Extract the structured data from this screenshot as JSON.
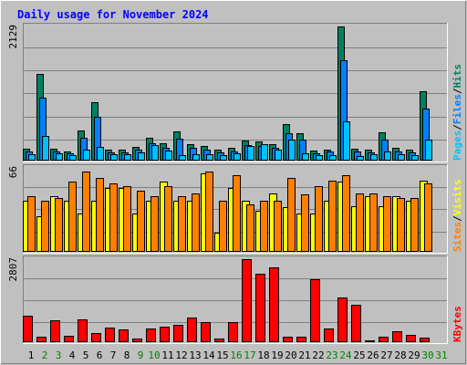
{
  "title": "Daily usage for November 2024",
  "colors": {
    "background": "#c0c0c0",
    "frame_light": "#ffffff",
    "frame_dark": "#808080",
    "title": "#0000ff",
    "pages": "#00c0ff",
    "files": "#0080ff",
    "hits": "#008060",
    "sites": "#ff8000",
    "visits": "#ffff00",
    "kbytes": "#ff0000",
    "weekday_label": "#000000",
    "weekend_label": "#008000"
  },
  "chart_data": [
    {
      "type": "bar",
      "panel": "hits-files-pages",
      "axis_max_label": "2129",
      "ylim": [
        0,
        2129
      ],
      "legend": [
        {
          "name": "Pages",
          "color": "#00c0ff"
        },
        {
          "name": "/",
          "color": "#000000"
        },
        {
          "name": "Files",
          "color": "#0080ff"
        },
        {
          "name": "/",
          "color": "#000000"
        },
        {
          "name": "Hits",
          "color": "#008060"
        }
      ],
      "categories": [
        "1",
        "2",
        "3",
        "4",
        "5",
        "6",
        "7",
        "8",
        "9",
        "10",
        "11",
        "12",
        "13",
        "14",
        "15",
        "16",
        "17",
        "18",
        "19",
        "20",
        "21",
        "22",
        "23",
        "24",
        "25",
        "26",
        "27",
        "28",
        "29",
        "30",
        "31"
      ],
      "series": [
        {
          "name": "Hits",
          "values": [
            183,
            1370,
            183,
            140,
            480,
            920,
            170,
            170,
            220,
            360,
            280,
            470,
            260,
            230,
            170,
            200,
            320,
            300,
            260,
            580,
            440,
            160,
            180,
            2129,
            190,
            170,
            450,
            200,
            170,
            1100,
            0
          ]
        },
        {
          "name": "Files",
          "values": [
            140,
            1000,
            140,
            110,
            360,
            690,
            130,
            130,
            170,
            270,
            210,
            350,
            200,
            170,
            130,
            150,
            240,
            230,
            200,
            440,
            330,
            120,
            140,
            1600,
            150,
            130,
            340,
            150,
            130,
            830,
            0
          ]
        },
        {
          "name": "Pages",
          "values": [
            100,
            390,
            110,
            80,
            170,
            220,
            100,
            100,
            130,
            250,
            160,
            90,
            100,
            100,
            90,
            110,
            230,
            260,
            170,
            340,
            110,
            90,
            90,
            630,
            70,
            100,
            150,
            100,
            80,
            340,
            0
          ]
        }
      ]
    },
    {
      "type": "bar",
      "panel": "visits-sites",
      "axis_max_label": "66",
      "ylim": [
        0,
        66
      ],
      "legend": [
        {
          "name": "Sites",
          "color": "#ff8000"
        },
        {
          "name": "/",
          "color": "#000000"
        },
        {
          "name": "Visits",
          "color": "#ffff00"
        }
      ],
      "categories": [
        "1",
        "2",
        "3",
        "4",
        "5",
        "6",
        "7",
        "8",
        "9",
        "10",
        "11",
        "12",
        "13",
        "14",
        "15",
        "16",
        "17",
        "18",
        "19",
        "20",
        "21",
        "22",
        "23",
        "24",
        "25",
        "26",
        "27",
        "28",
        "29",
        "30",
        "31"
      ],
      "series": [
        {
          "name": "Visits",
          "values": [
            40,
            28,
            44,
            40,
            30,
            40,
            50,
            50,
            30,
            40,
            55,
            40,
            40,
            62,
            15,
            50,
            40,
            32,
            46,
            35,
            30,
            30,
            40,
            55,
            36,
            44,
            36,
            44,
            40,
            56,
            0
          ]
        },
        {
          "name": "Sites",
          "values": [
            44,
            40,
            42,
            55,
            63,
            58,
            54,
            52,
            48,
            44,
            52,
            44,
            46,
            63,
            40,
            60,
            37,
            40,
            40,
            58,
            45,
            52,
            56,
            60,
            46,
            46,
            44,
            42,
            42,
            54,
            0
          ]
        }
      ]
    },
    {
      "type": "bar",
      "panel": "kbytes",
      "axis_max_label": "2807",
      "ylim": [
        0,
        2807
      ],
      "legend": [
        {
          "name": "KBytes",
          "color": "#ff0000"
        }
      ],
      "categories": [
        "1",
        "2",
        "3",
        "4",
        "5",
        "6",
        "7",
        "8",
        "9",
        "10",
        "11",
        "12",
        "13",
        "14",
        "15",
        "16",
        "17",
        "18",
        "19",
        "20",
        "21",
        "22",
        "23",
        "24",
        "25",
        "26",
        "27",
        "28",
        "29",
        "30",
        "31"
      ],
      "series": [
        {
          "name": "KBytes",
          "values": [
            890,
            200,
            730,
            230,
            760,
            310,
            500,
            420,
            120,
            460,
            530,
            590,
            830,
            680,
            120,
            680,
            2807,
            2310,
            2520,
            200,
            200,
            2140,
            470,
            1510,
            1260,
            60,
            170,
            360,
            260,
            160,
            0
          ]
        }
      ]
    }
  ],
  "day_labels": [
    "1",
    "2",
    "3",
    "4",
    "5",
    "6",
    "7",
    "8",
    "9",
    "10",
    "11",
    "12",
    "13",
    "14",
    "15",
    "16",
    "17",
    "18",
    "19",
    "20",
    "21",
    "22",
    "23",
    "24",
    "25",
    "26",
    "27",
    "28",
    "29",
    "30",
    "31"
  ],
  "weekend_days": [
    2,
    3,
    9,
    10,
    16,
    17,
    23,
    24,
    30,
    31
  ]
}
